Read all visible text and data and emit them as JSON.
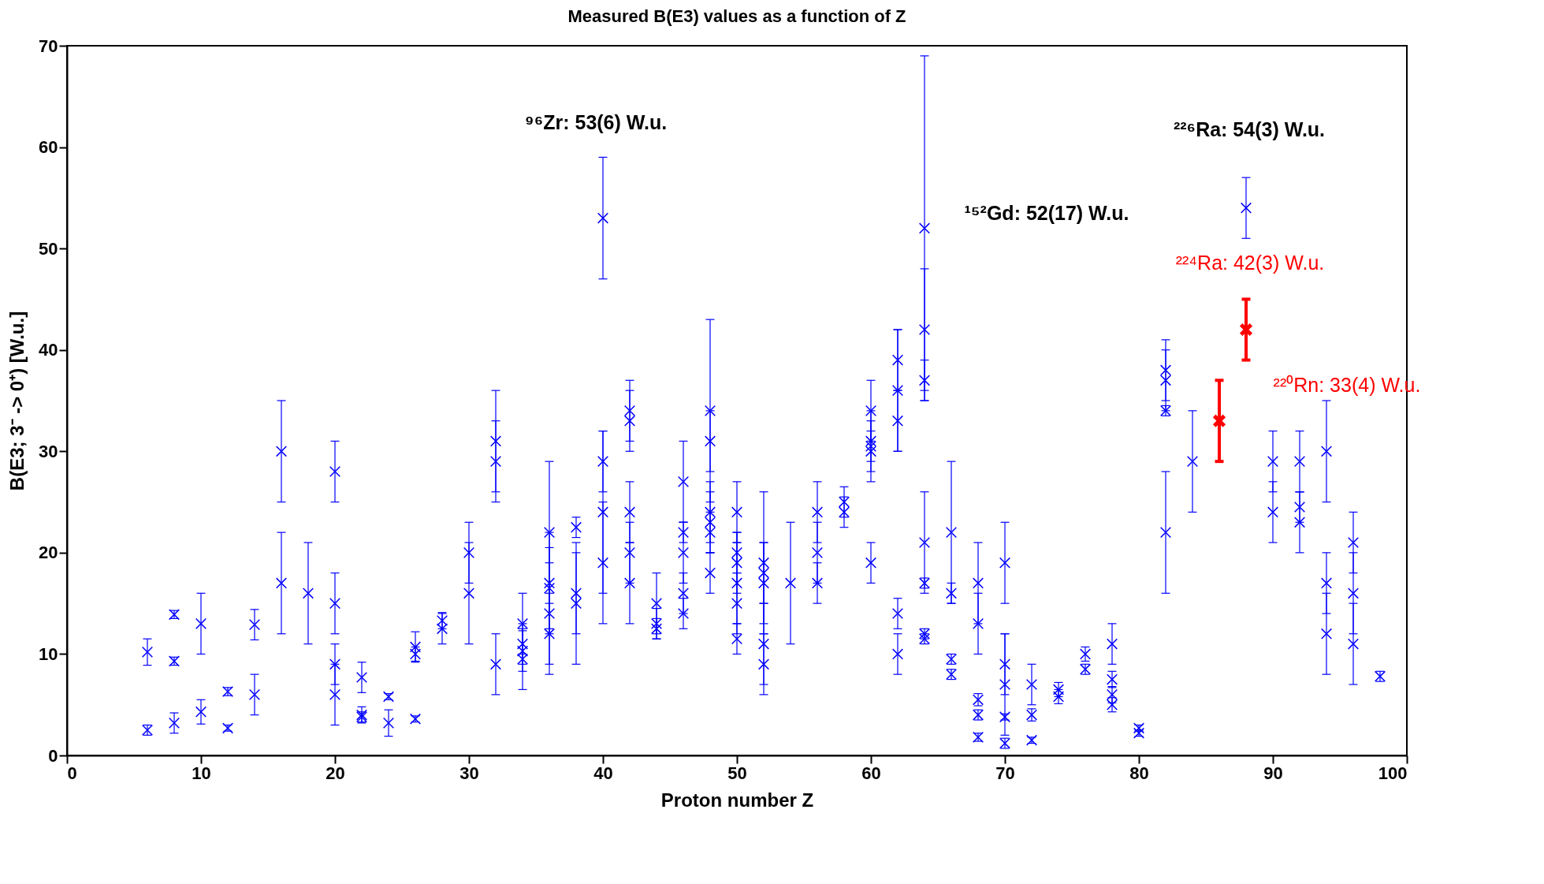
{
  "chart_data": {
    "type": "scatter",
    "title": "Measured B(E3) values as a function of Z",
    "xlabel": "Proton number Z",
    "ylabel": "B(E3; 3⁻ -> 0⁺) [W.u.]",
    "xlim": [
      0,
      100
    ],
    "xticks": [
      0,
      10,
      20,
      30,
      40,
      50,
      60,
      70,
      80,
      90,
      100
    ],
    "ylim": [
      0,
      70
    ],
    "yticks": [
      0,
      10,
      20,
      30,
      40,
      50,
      60,
      70
    ],
    "grid": false,
    "marker": "cross",
    "series": [
      {
        "color": "#0000ff",
        "x": [
          6,
          6,
          8,
          8,
          8,
          10,
          10,
          12,
          12,
          14,
          14,
          16,
          16,
          18,
          20,
          20,
          20,
          20,
          22,
          22,
          22,
          24,
          24,
          26,
          26,
          26,
          28,
          28,
          30,
          30,
          32,
          32,
          32,
          34,
          34,
          34,
          34,
          36,
          36,
          36,
          36,
          36,
          38,
          38,
          38,
          40,
          40,
          40,
          40,
          42,
          42,
          42,
          42,
          42,
          44,
          44,
          44,
          46,
          46,
          46,
          46,
          46,
          48,
          48,
          48,
          48,
          48,
          48,
          50,
          50,
          50,
          50,
          50,
          50,
          52,
          52,
          52,
          52,
          52,
          54,
          56,
          56,
          56,
          58,
          58,
          60,
          60,
          60,
          60,
          60,
          62,
          62,
          62,
          62,
          62,
          64,
          64,
          64,
          64,
          64,
          64,
          64,
          66,
          66,
          66,
          66,
          68,
          68,
          68,
          68,
          68,
          70,
          70,
          70,
          70,
          70,
          72,
          72,
          72,
          74,
          74,
          76,
          76,
          78,
          78,
          78,
          78,
          80,
          80,
          82,
          82,
          82,
          82,
          84,
          88,
          90,
          90,
          92,
          92,
          92,
          94,
          94,
          94,
          96,
          96,
          96,
          98
        ],
        "values": [
          2.5,
          10.2,
          3.2,
          9.3,
          13.9,
          4.3,
          13,
          2.7,
          6.3,
          6,
          12.9,
          17,
          30,
          16,
          6,
          9,
          15,
          28,
          4,
          7.7,
          3.8,
          3.2,
          5.8,
          3.6,
          10,
          10.7,
          12.5,
          13.3,
          16,
          20,
          9,
          29,
          31,
          9.5,
          10.3,
          11,
          13,
          12,
          14,
          16.5,
          17,
          22,
          15,
          16,
          22.5,
          19,
          24,
          29,
          53,
          17,
          20,
          24,
          33,
          34,
          12.5,
          13,
          15,
          14,
          16,
          20,
          22,
          27,
          18,
          22,
          23,
          24,
          31,
          34,
          11.5,
          15,
          17,
          19,
          20,
          24,
          9,
          11,
          17,
          18,
          19,
          17,
          17,
          20,
          24,
          24,
          25,
          19,
          30,
          30.5,
          31,
          34,
          10,
          14,
          33,
          36,
          39,
          11.5,
          12,
          17,
          21,
          37,
          42,
          52,
          8,
          9.5,
          16,
          22,
          1.8,
          4,
          5.5,
          13,
          17,
          1.2,
          3.8,
          7,
          9,
          19,
          1.5,
          4,
          7,
          5.8,
          6.5,
          8.5,
          10,
          5,
          6,
          7.5,
          11,
          2.2,
          2.7,
          22,
          34,
          37,
          38,
          29,
          54,
          24,
          29,
          23,
          24.5,
          29,
          12,
          17,
          30,
          11,
          16,
          21,
          7.8
        ],
        "errors": [
          0.5,
          1.3,
          1,
          0.4,
          0.4,
          1.2,
          3,
          0.3,
          0.4,
          2,
          1.5,
          5,
          5,
          5,
          3,
          2,
          3,
          3,
          0.8,
          1.5,
          0.5,
          1.3,
          0.3,
          0.3,
          0.7,
          1.5,
          1.5,
          0.8,
          5,
          3,
          3,
          4,
          5,
          3,
          2,
          2,
          3,
          4,
          5,
          4,
          5,
          7,
          6,
          4,
          1,
          6,
          8,
          3,
          6,
          4,
          3,
          3,
          3,
          3,
          1,
          1.5,
          3,
          1.5,
          2,
          3,
          1,
          4,
          2,
          2,
          3,
          3,
          3,
          9,
          1.5,
          3,
          4,
          3,
          2,
          3,
          3,
          4,
          4,
          3,
          7,
          6,
          2,
          3,
          3,
          1.5,
          1.5,
          2,
          3,
          1.5,
          3,
          3,
          2,
          1.5,
          3,
          6,
          3,
          0.5,
          0.5,
          0.5,
          5,
          2,
          6,
          17,
          0.5,
          0.5,
          1,
          7,
          0.4,
          0.5,
          0.6,
          3,
          4,
          0.5,
          0.3,
          5,
          3,
          4,
          0.3,
          0.6,
          2,
          0.7,
          0.7,
          0.5,
          0.7,
          0.7,
          0.8,
          0.8,
          2,
          0.3,
          0.3,
          6,
          0.5,
          3,
          3,
          5,
          3,
          3,
          3,
          3,
          1.5,
          3,
          4,
          3,
          5,
          4,
          4,
          3,
          0.5
        ]
      },
      {
        "color": "#ff0000",
        "x": [
          86,
          88
        ],
        "values": [
          33,
          42
        ],
        "errors": [
          4,
          3
        ]
      }
    ],
    "annotations": [
      "⁹⁶Zr: 53(6) W.u.",
      {
        "text": "¹⁵²Gd: 52(17) W.u.",
        "x": 64,
        "y": 52
      },
      "²²⁶Ra: 54(3) W.u.",
      {
        "text": "²²⁴Ra: 42(3) W.u.",
        "x": 88,
        "y": 42
      },
      "²²⁰Rn: 33(4) W.u."
    ]
  }
}
